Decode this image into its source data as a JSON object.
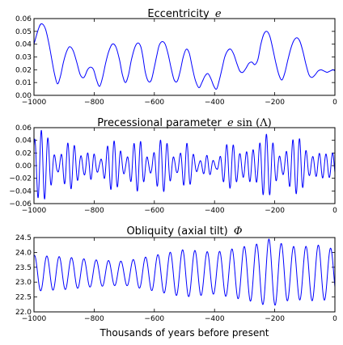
{
  "figure": {
    "xlabel": "Thousands of years before present"
  },
  "chart_data": [
    {
      "type": "line",
      "title_text": "Eccentricity",
      "title_math": "e",
      "x_range": [
        -1000,
        0
      ],
      "ylim": [
        0.0,
        0.06
      ],
      "xticks": [
        -1000,
        -800,
        -600,
        -400,
        -200,
        0
      ],
      "xtick_labels": [
        "−1000",
        "−800",
        "−600",
        "−400",
        "−200",
        "0"
      ],
      "yticks": [
        0.0,
        0.01,
        0.02,
        0.03,
        0.04,
        0.05,
        0.06
      ],
      "ytick_labels": [
        "0.00",
        "0.01",
        "0.02",
        "0.03",
        "0.04",
        "0.05",
        "0.06"
      ],
      "series": [
        {
          "color": "#0000ff",
          "x": [
            -1000,
            -985,
            -975,
            -962,
            -950,
            -940,
            -932,
            -922,
            -912,
            -902,
            -892,
            -882,
            -870,
            -858,
            -846,
            -834,
            -822,
            -812,
            -802,
            -792,
            -782,
            -772,
            -762,
            -752,
            -740,
            -728,
            -716,
            -706,
            -696,
            -686,
            -676,
            -664,
            -654,
            -645,
            -638,
            -630,
            -620,
            -610,
            -600,
            -592,
            -584,
            -574,
            -564,
            -554,
            -544,
            -534,
            -524,
            -514,
            -504,
            -494,
            -484,
            -474,
            -464,
            -452,
            -442,
            -432,
            -422,
            -412,
            -402,
            -393,
            -384,
            -374,
            -366,
            -356,
            -346,
            -336,
            -326,
            -316,
            -306,
            -296,
            -286,
            -276,
            -266,
            -256,
            -246,
            -236,
            -226,
            -216,
            -206,
            -196,
            -186,
            -176,
            -166,
            -156,
            -146,
            -136,
            -126,
            -116,
            -106,
            -96,
            -86,
            -76,
            -66,
            -56,
            -46,
            -36,
            -26,
            -16,
            -6,
            0
          ],
          "y": [
            0.04,
            0.052,
            0.056,
            0.052,
            0.04,
            0.027,
            0.017,
            0.009,
            0.015,
            0.026,
            0.034,
            0.038,
            0.035,
            0.026,
            0.016,
            0.014,
            0.02,
            0.022,
            0.02,
            0.012,
            0.007,
            0.014,
            0.025,
            0.034,
            0.04,
            0.038,
            0.028,
            0.016,
            0.01,
            0.016,
            0.028,
            0.038,
            0.041,
            0.038,
            0.03,
            0.018,
            0.011,
            0.012,
            0.022,
            0.031,
            0.039,
            0.042,
            0.04,
            0.032,
            0.021,
            0.012,
            0.011,
            0.019,
            0.03,
            0.036,
            0.033,
            0.022,
            0.012,
            0.006,
            0.01,
            0.015,
            0.017,
            0.013,
            0.007,
            0.005,
            0.012,
            0.022,
            0.03,
            0.035,
            0.036,
            0.032,
            0.025,
            0.019,
            0.018,
            0.021,
            0.025,
            0.026,
            0.024,
            0.028,
            0.04,
            0.048,
            0.05,
            0.046,
            0.036,
            0.025,
            0.016,
            0.012,
            0.018,
            0.028,
            0.037,
            0.043,
            0.045,
            0.042,
            0.034,
            0.024,
            0.016,
            0.014,
            0.016,
            0.019,
            0.02,
            0.019,
            0.018,
            0.019,
            0.02,
            0.019
          ]
        }
      ]
    },
    {
      "type": "line",
      "title_text": "Precessional parameter",
      "title_math": "e",
      "title_func": "sin",
      "title_arg": "(Λ)",
      "x_range": [
        -1000,
        0
      ],
      "ylim": [
        -0.06,
        0.06
      ],
      "xticks": [
        -1000,
        -800,
        -600,
        -400,
        -200,
        0
      ],
      "xtick_labels": [
        "−1000",
        "−800",
        "−600",
        "−400",
        "−200",
        "0"
      ],
      "yticks": [
        -0.06,
        -0.04,
        -0.02,
        0.0,
        0.02,
        0.04,
        0.06
      ],
      "ytick_labels": [
        "−0.06",
        "−0.04",
        "−0.02",
        "0.00",
        "0.02",
        "0.04",
        "0.06"
      ],
      "series": [
        {
          "color": "#0000ff",
          "period_kyr": 22,
          "envelope_x": [
            -1000,
            -985,
            -975,
            -962,
            -950,
            -940,
            -932,
            -922,
            -912,
            -902,
            -892,
            -882,
            -870,
            -858,
            -846,
            -834,
            -822,
            -812,
            -802,
            -792,
            -782,
            -772,
            -762,
            -752,
            -740,
            -728,
            -716,
            -706,
            -696,
            -686,
            -676,
            -664,
            -654,
            -645,
            -638,
            -630,
            -620,
            -610,
            -600,
            -592,
            -584,
            -574,
            -564,
            -554,
            -544,
            -534,
            -524,
            -514,
            -504,
            -494,
            -484,
            -474,
            -464,
            -452,
            -442,
            -432,
            -422,
            -412,
            -402,
            -393,
            -384,
            -374,
            -366,
            -356,
            -346,
            -336,
            -326,
            -316,
            -306,
            -296,
            -286,
            -276,
            -266,
            -256,
            -246,
            -236,
            -226,
            -216,
            -206,
            -196,
            -186,
            -176,
            -166,
            -156,
            -146,
            -136,
            -126,
            -116,
            -106,
            -96,
            -86,
            -76,
            -66,
            -56,
            -46,
            -36,
            -26,
            -16,
            -6,
            0
          ],
          "envelope_y": [
            0.04,
            0.052,
            0.056,
            0.052,
            0.04,
            0.027,
            0.017,
            0.009,
            0.015,
            0.026,
            0.034,
            0.038,
            0.035,
            0.026,
            0.016,
            0.014,
            0.02,
            0.022,
            0.02,
            0.012,
            0.007,
            0.014,
            0.025,
            0.034,
            0.04,
            0.038,
            0.028,
            0.016,
            0.01,
            0.016,
            0.028,
            0.038,
            0.041,
            0.038,
            0.03,
            0.018,
            0.011,
            0.012,
            0.022,
            0.031,
            0.039,
            0.042,
            0.04,
            0.032,
            0.021,
            0.012,
            0.011,
            0.019,
            0.03,
            0.036,
            0.033,
            0.022,
            0.012,
            0.006,
            0.01,
            0.015,
            0.017,
            0.013,
            0.007,
            0.005,
            0.012,
            0.022,
            0.03,
            0.035,
            0.036,
            0.032,
            0.025,
            0.019,
            0.018,
            0.021,
            0.025,
            0.026,
            0.024,
            0.028,
            0.04,
            0.048,
            0.05,
            0.046,
            0.036,
            0.025,
            0.016,
            0.012,
            0.018,
            0.028,
            0.037,
            0.043,
            0.045,
            0.042,
            0.034,
            0.024,
            0.016,
            0.014,
            0.016,
            0.019,
            0.02,
            0.019,
            0.018,
            0.019,
            0.02,
            0.019
          ]
        }
      ]
    },
    {
      "type": "line",
      "title_text": "Obliquity (axial tilt)",
      "title_math": "Φ",
      "x_range": [
        -1000,
        0
      ],
      "ylim": [
        22.0,
        24.5
      ],
      "xticks": [
        -1000,
        -800,
        -600,
        -400,
        -200,
        0
      ],
      "xtick_labels": [
        "−1000",
        "−800",
        "−600",
        "−400",
        "−200",
        "0"
      ],
      "yticks": [
        22.0,
        22.5,
        23.0,
        23.5,
        24.0,
        24.5
      ],
      "ytick_labels": [
        "22.0",
        "22.5",
        "23.0",
        "23.5",
        "24.0",
        "24.5"
      ],
      "series": [
        {
          "color": "#0000ff",
          "mean": 23.3,
          "period_kyr": 41,
          "amplitude_x": [
            -1000,
            -900,
            -800,
            -700,
            -600,
            -500,
            -400,
            -300,
            -250,
            -220,
            -150,
            -100,
            -50,
            0
          ],
          "amplitude_y": [
            0.6,
            0.55,
            0.45,
            0.4,
            0.6,
            0.8,
            0.7,
            0.9,
            1.0,
            1.15,
            0.9,
            0.9,
            0.95,
            0.8
          ]
        }
      ]
    }
  ]
}
